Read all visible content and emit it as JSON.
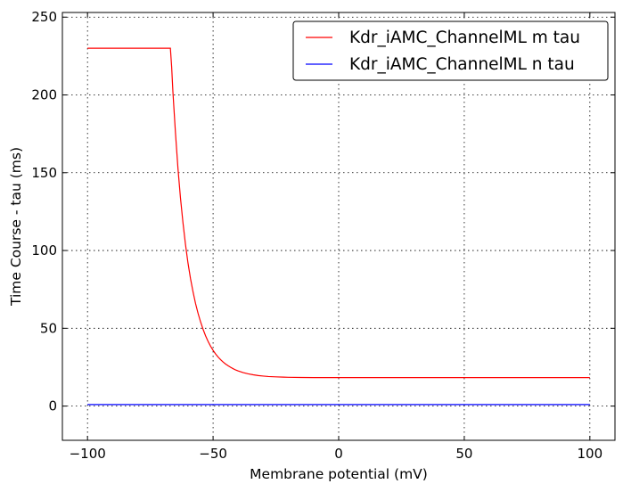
{
  "chart_data": {
    "type": "line",
    "xlabel": "Membrane potential (mV)",
    "ylabel": "Time Course - tau (ms)",
    "xlim": [
      -110,
      110
    ],
    "ylim": [
      -22,
      253
    ],
    "xticks": [
      -100,
      -50,
      0,
      50,
      100
    ],
    "yticks": [
      0,
      50,
      100,
      150,
      200,
      250
    ],
    "xtick_labels": [
      "−100",
      "−50",
      "0",
      "50",
      "100"
    ],
    "ytick_labels": [
      "0",
      "50",
      "100",
      "150",
      "200",
      "250"
    ],
    "grid": true,
    "legend_position": "top-right",
    "series": [
      {
        "name": "Kdr_iAMC_ChannelML m tau",
        "color": "#ff0000",
        "x": [
          -100,
          -90,
          -80,
          -70,
          -67,
          -66.5,
          -66,
          -65,
          -64,
          -63,
          -62,
          -61,
          -60,
          -59,
          -58,
          -57,
          -56,
          -55,
          -54,
          -53,
          -52,
          -51,
          -50,
          -49,
          -48,
          -47,
          -46,
          -45,
          -44,
          -43,
          -42,
          -41,
          -40,
          -38,
          -36,
          -34,
          -32,
          -30,
          -28,
          -25,
          -22,
          -20,
          -15,
          -10,
          0,
          25,
          50,
          75,
          100
        ],
        "y": [
          230,
          230,
          230,
          230,
          230,
          218,
          202,
          176,
          153,
          134,
          118,
          104,
          92,
          82,
          73.5,
          66,
          59.7,
          54.2,
          49.4,
          45.2,
          41.6,
          38.5,
          35.8,
          33.5,
          31.5,
          29.8,
          28.3,
          27.0,
          25.9,
          24.9,
          24.0,
          23.2,
          22.6,
          21.5,
          20.7,
          20.1,
          19.6,
          19.3,
          19.0,
          18.8,
          18.6,
          18.5,
          18.4,
          18.3,
          18.3,
          18.3,
          18.3,
          18.3,
          18.3
        ]
      },
      {
        "name": "Kdr_iAMC_ChannelML n tau",
        "color": "#0000ff",
        "x": [
          -100,
          100
        ],
        "y": [
          1,
          1
        ]
      }
    ]
  }
}
